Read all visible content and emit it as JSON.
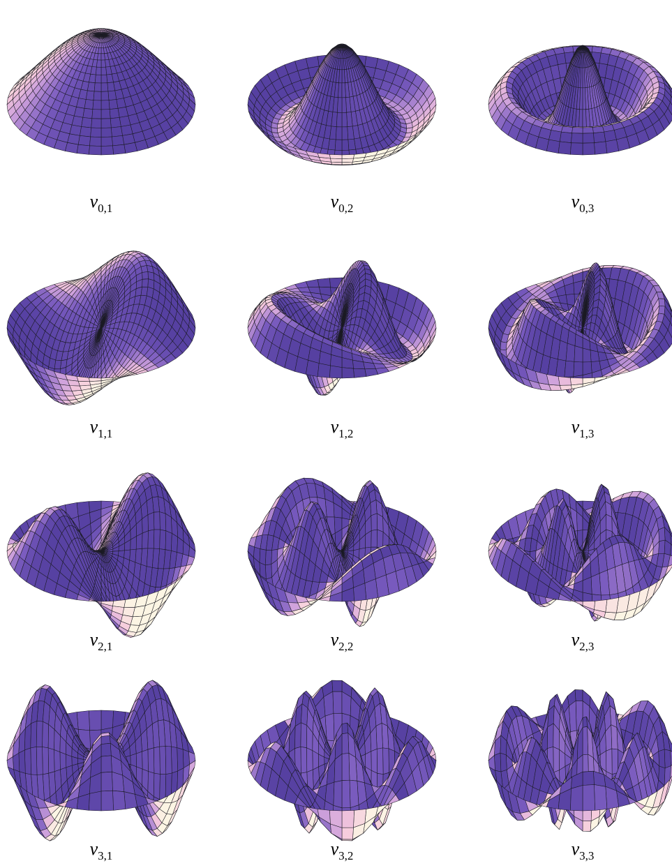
{
  "panels": [
    {
      "variable": "v",
      "index": "0,1"
    },
    {
      "variable": "v",
      "index": "0,2"
    },
    {
      "variable": "v",
      "index": "0,3"
    },
    {
      "variable": "v",
      "index": "1,1"
    },
    {
      "variable": "v",
      "index": "1,2"
    },
    {
      "variable": "v",
      "index": "1,3"
    },
    {
      "variable": "v",
      "index": "2,1"
    },
    {
      "variable": "v",
      "index": "2,2"
    },
    {
      "variable": "v",
      "index": "2,3"
    },
    {
      "variable": "v",
      "index": "3,1"
    },
    {
      "variable": "v",
      "index": "3,2"
    },
    {
      "variable": "v",
      "index": "3,3"
    }
  ]
}
